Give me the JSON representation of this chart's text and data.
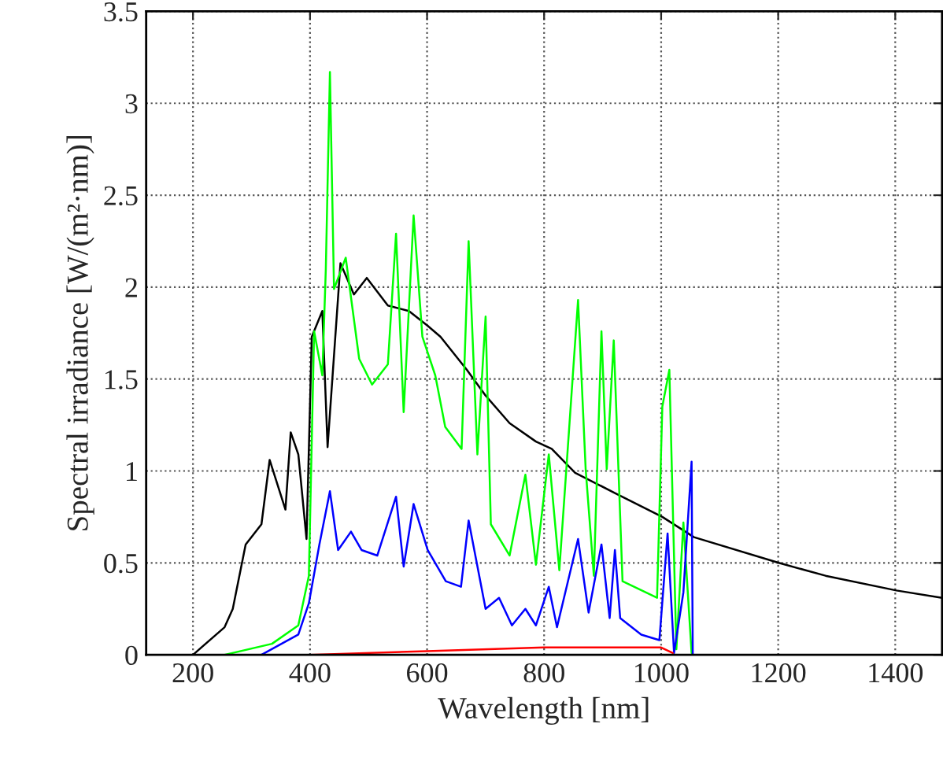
{
  "chart_data": {
    "type": "line",
    "xlabel": "Wavelength [nm]",
    "ylabel": "Spectral irradiance [W/(m²·nm)]",
    "xlim": [
      120,
      1480
    ],
    "ylim": [
      0,
      3.5
    ],
    "xticks": [
      200,
      400,
      600,
      800,
      1000,
      1200,
      1400
    ],
    "yticks": [
      0,
      0.5,
      1,
      1.5,
      2,
      2.5,
      3,
      3.5
    ],
    "grid": true,
    "legend": false,
    "line_style": "solid",
    "marker": "none",
    "series": [
      {
        "color": "#000000",
        "x": [
          200,
          254,
          268,
          290,
          317,
          331,
          358,
          367,
          380,
          394,
          403,
          421,
          430,
          452,
          475,
          497,
          533,
          569,
          601,
          623,
          668,
          700,
          741,
          786,
          813,
          853,
          921,
          1002,
          1056,
          1201,
          1281,
          1402,
          1480
        ],
        "values": [
          0,
          0.15,
          0.25,
          0.6,
          0.71,
          1.06,
          0.79,
          1.21,
          1.09,
          0.63,
          1.73,
          1.87,
          1.13,
          2.13,
          1.96,
          2.05,
          1.9,
          1.87,
          1.79,
          1.73,
          1.55,
          1.41,
          1.26,
          1.16,
          1.12,
          0.99,
          0.88,
          0.75,
          0.64,
          0.5,
          0.43,
          0.35,
          0.31
        ]
      },
      {
        "color": "#00ff00",
        "x": [
          254,
          335,
          380,
          398,
          407,
          421,
          427,
          434,
          441,
          461,
          484,
          506,
          533,
          547,
          560,
          577,
          592,
          614,
          631,
          659,
          671,
          686,
          700,
          709,
          741,
          768,
          786,
          808,
          826,
          858,
          871,
          885,
          898,
          907,
          919,
          934,
          993,
          1002,
          1014,
          1026,
          1038,
          1052
        ],
        "values": [
          0,
          0.06,
          0.16,
          0.43,
          1.76,
          1.52,
          2.1,
          3.17,
          1.99,
          2.16,
          1.61,
          1.47,
          1.58,
          2.29,
          1.32,
          2.39,
          1.73,
          1.52,
          1.24,
          1.12,
          2.25,
          1.09,
          1.84,
          0.71,
          0.54,
          0.98,
          0.49,
          1.09,
          0.46,
          1.93,
          1.01,
          0.43,
          1.76,
          1.01,
          1.71,
          0.4,
          0.31,
          1.35,
          1.55,
          0.03,
          0.72,
          0.01
        ]
      },
      {
        "color": "#0000ff",
        "x": [
          317,
          380,
          398,
          416,
          434,
          448,
          470,
          488,
          515,
          547,
          560,
          577,
          601,
          632,
          658,
          671,
          700,
          723,
          745,
          768,
          786,
          808,
          822,
          858,
          876,
          898,
          912,
          921,
          930,
          966,
          997,
          1011,
          1022,
          1038,
          1052,
          1054
        ],
        "values": [
          0,
          0.11,
          0.28,
          0.6,
          0.89,
          0.57,
          0.67,
          0.57,
          0.54,
          0.86,
          0.48,
          0.82,
          0.57,
          0.4,
          0.37,
          0.73,
          0.25,
          0.31,
          0.16,
          0.25,
          0.16,
          0.37,
          0.15,
          0.63,
          0.23,
          0.6,
          0.2,
          0.57,
          0.2,
          0.11,
          0.08,
          0.66,
          0.01,
          0.34,
          1.05,
          0
        ]
      },
      {
        "color": "#ff0000",
        "x": [
          400,
          600,
          800,
          1000,
          1020
        ],
        "values": [
          0,
          0.02,
          0.04,
          0.04,
          0.01
        ]
      }
    ]
  }
}
